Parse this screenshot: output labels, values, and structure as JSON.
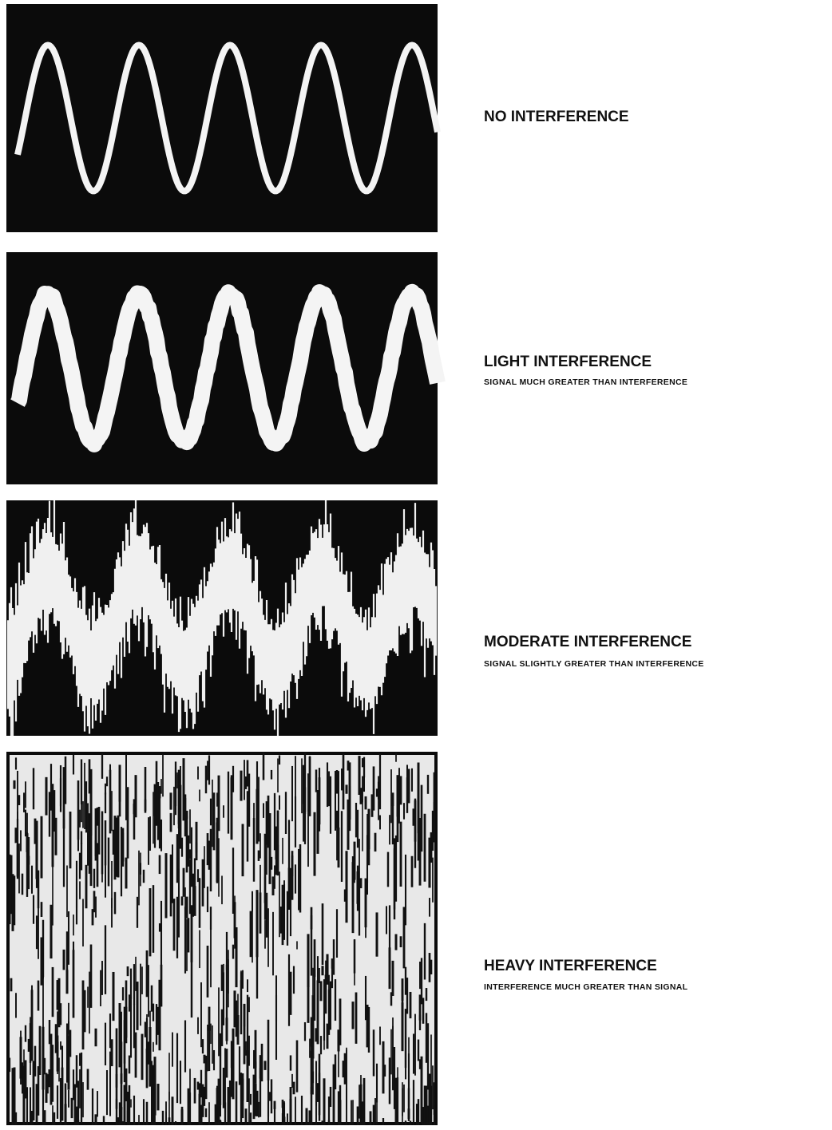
{
  "panels": [
    {
      "title": "NO INTERFERENCE"
    },
    {
      "title": "LIGHT INTERFERENCE",
      "subtitle": "SIGNAL MUCH GREATER THAN INTERFERENCE"
    },
    {
      "title": "MODERATE INTERFERENCE",
      "subtitle": "SIGNAL SLIGHTLY GREATER THAN INTERFERENCE"
    },
    {
      "title": "HEAVY INTERFERENCE",
      "subtitle": "INTERFERENCE MUCH GREATER THAN SIGNAL"
    }
  ]
}
